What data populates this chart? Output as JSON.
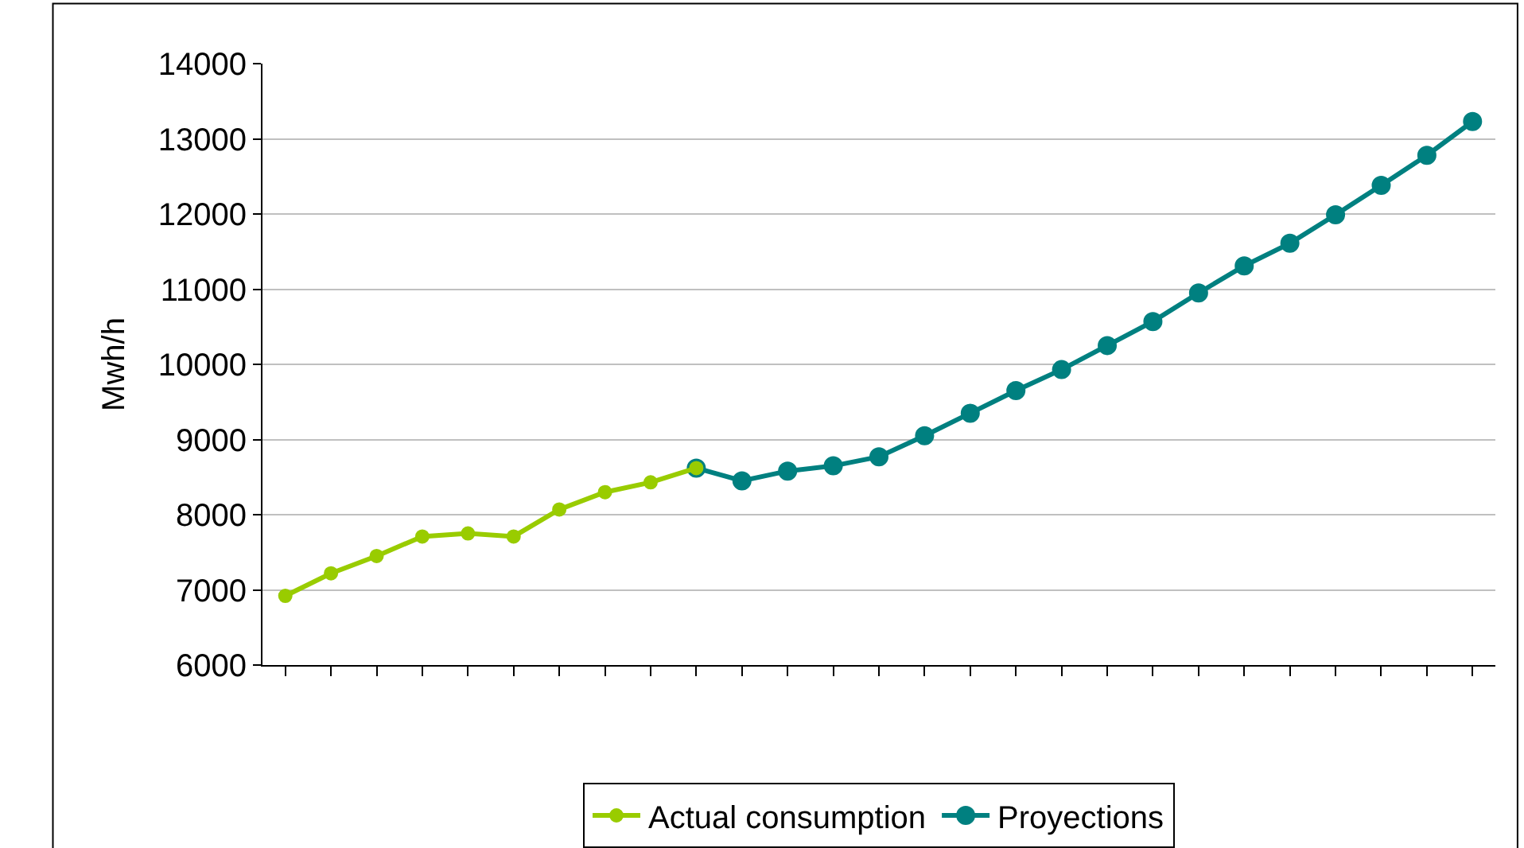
{
  "chart_data": {
    "type": "line",
    "ylabel": "Mwh/h",
    "categories": [
      null,
      null,
      null,
      null,
      null,
      null,
      null,
      null,
      null,
      null,
      null,
      null,
      null,
      null,
      null,
      null,
      null,
      null,
      null,
      null,
      null,
      null,
      null,
      null,
      null,
      null,
      null
    ],
    "series": [
      {
        "name": "Proyections",
        "color": "#008080",
        "values": [
          null,
          null,
          null,
          null,
          null,
          null,
          null,
          null,
          null,
          8620,
          8450,
          8580,
          8650,
          8770,
          9050,
          9350,
          9650,
          9930,
          10250,
          10570,
          10950,
          11310,
          11610,
          11990,
          12380,
          12780,
          13230
        ]
      },
      {
        "name": "Actual consumption",
        "color": "#99cc00",
        "values": [
          6920,
          7220,
          7450,
          7710,
          7750,
          7710,
          8070,
          8300,
          8430,
          8620,
          null,
          null,
          null,
          null,
          null,
          null,
          null,
          null,
          null,
          null,
          null,
          null,
          null,
          null,
          null,
          null,
          null
        ]
      }
    ],
    "ylim": [
      6000,
      14000
    ],
    "yticks": [
      6000,
      7000,
      8000,
      9000,
      10000,
      11000,
      12000,
      13000,
      14000
    ],
    "grid": "y",
    "legend": "bottom",
    "marker": "circle",
    "line_style": "solid",
    "tick_labels": "y"
  }
}
